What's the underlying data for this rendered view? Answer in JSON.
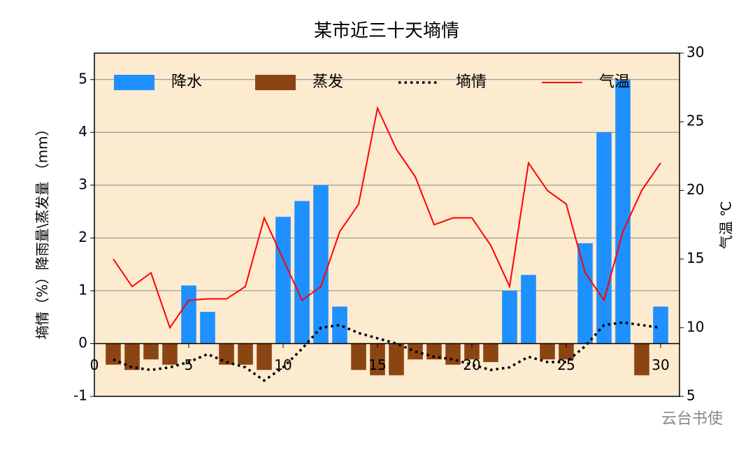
{
  "chart_data": {
    "type": "bar",
    "title": "某市近三十天墒情",
    "ylabel": "墒情（%）降雨量\\蒸发量 （mm）",
    "y2label": "气温 ℃",
    "watermark": "云台书使",
    "x": [
      1,
      2,
      3,
      4,
      5,
      6,
      7,
      8,
      9,
      10,
      11,
      12,
      13,
      14,
      15,
      16,
      17,
      18,
      19,
      20,
      21,
      22,
      23,
      24,
      25,
      26,
      27,
      28,
      29,
      30
    ],
    "xlim": [
      0,
      31
    ],
    "xticks": [
      0,
      5,
      10,
      15,
      20,
      25,
      30
    ],
    "ylim": [
      -1,
      5.5
    ],
    "yticks": [
      -1,
      0,
      1,
      2,
      3,
      4,
      5
    ],
    "y2lim": [
      5,
      30
    ],
    "y2ticks": [
      5,
      10,
      15,
      20,
      25,
      30
    ],
    "grid": true,
    "background": "#fdebd0",
    "series": [
      {
        "name": "降水",
        "type": "bar",
        "color": "#1e90ff",
        "values": [
          0,
          0,
          0,
          0,
          1.1,
          0.6,
          0,
          0,
          0,
          2.4,
          2.7,
          3.0,
          0.7,
          0,
          0,
          0,
          0,
          0,
          0,
          0,
          0,
          1.0,
          1.3,
          0,
          0,
          1.9,
          4.0,
          5.0,
          0,
          0.7
        ]
      },
      {
        "name": "蒸发",
        "type": "bar",
        "color": "#8b4513",
        "values": [
          -0.4,
          -0.5,
          -0.3,
          -0.4,
          0,
          0,
          -0.4,
          -0.4,
          -0.5,
          0,
          0,
          0,
          0,
          -0.5,
          -0.6,
          -0.6,
          -0.3,
          -0.3,
          -0.4,
          -0.3,
          -0.35,
          0,
          0,
          -0.3,
          -0.3,
          0,
          0,
          0,
          -0.6,
          0
        ]
      },
      {
        "name": "墒情",
        "type": "line",
        "linestyle": "dotted",
        "color": "#000000",
        "values": [
          -0.3,
          -0.45,
          -0.5,
          -0.45,
          -0.35,
          -0.2,
          -0.35,
          -0.45,
          -0.7,
          -0.45,
          -0.1,
          0.3,
          0.35,
          0.2,
          0.1,
          0.0,
          -0.15,
          -0.25,
          -0.3,
          -0.4,
          -0.5,
          -0.45,
          -0.25,
          -0.35,
          -0.35,
          -0.05,
          0.35,
          0.4,
          0.35,
          0.3
        ]
      },
      {
        "name": "气温",
        "type": "line",
        "axis": "y2",
        "color": "#ff0000",
        "values": [
          15,
          13,
          14,
          10,
          12,
          12.1,
          12.1,
          13,
          18,
          15,
          12,
          13,
          17,
          19,
          26,
          23,
          21,
          17.5,
          18,
          18,
          16,
          13,
          22,
          20,
          19,
          14,
          12,
          17,
          20,
          22
        ]
      }
    ]
  }
}
